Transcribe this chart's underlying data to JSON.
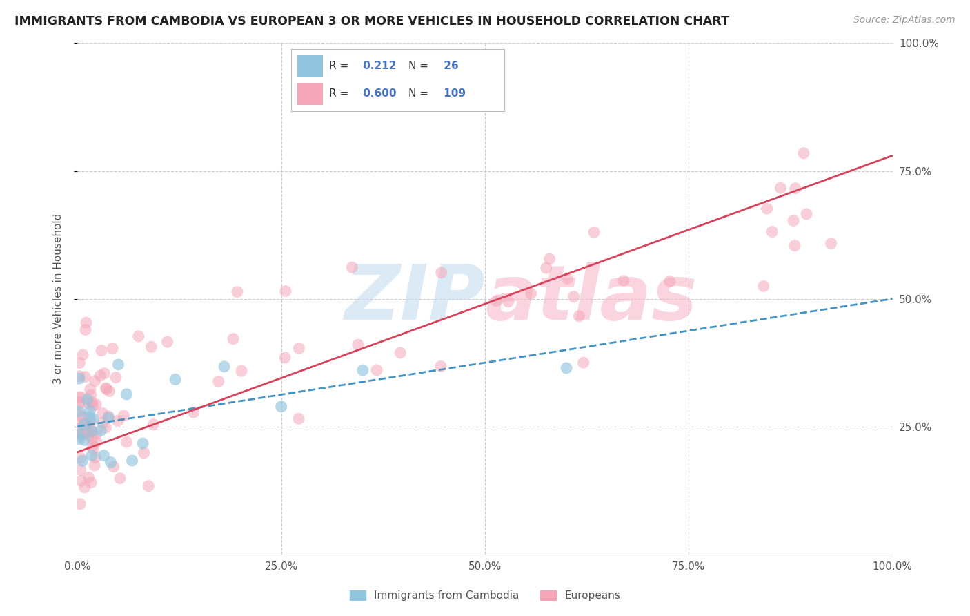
{
  "title": "IMMIGRANTS FROM CAMBODIA VS EUROPEAN 3 OR MORE VEHICLES IN HOUSEHOLD CORRELATION CHART",
  "source": "Source: ZipAtlas.com",
  "xlabel": "Immigrants from Cambodia",
  "ylabel": "3 or more Vehicles in Household",
  "legend_label1": "Immigrants from Cambodia",
  "legend_label2": "Europeans",
  "R1": 0.212,
  "N1": 26,
  "R2": 0.6,
  "N2": 109,
  "color1": "#92c5de",
  "color2": "#f4a6b8",
  "line_color1": "#4393c3",
  "line_color2": "#d6425a",
  "background_color": "#ffffff",
  "grid_color": "#cccccc",
  "watermark_color_zip": "#c6dcef",
  "watermark_color_atlas": "#f7b8c8",
  "text_color": "#555555",
  "blue_line_start_y": 25.0,
  "blue_line_end_y": 50.0,
  "pink_line_start_y": 20.0,
  "pink_line_end_y": 78.0,
  "xlim": [
    0,
    100
  ],
  "ylim": [
    0,
    100
  ],
  "xticks": [
    0,
    25,
    50,
    75,
    100
  ],
  "yticks": [
    25,
    50,
    75,
    100
  ],
  "xticklabels": [
    "0.0%",
    "25.0%",
    "50.0%",
    "75.0%",
    "100.0%"
  ],
  "yticklabels": [
    "25.0%",
    "50.0%",
    "75.0%",
    "100.0%"
  ]
}
